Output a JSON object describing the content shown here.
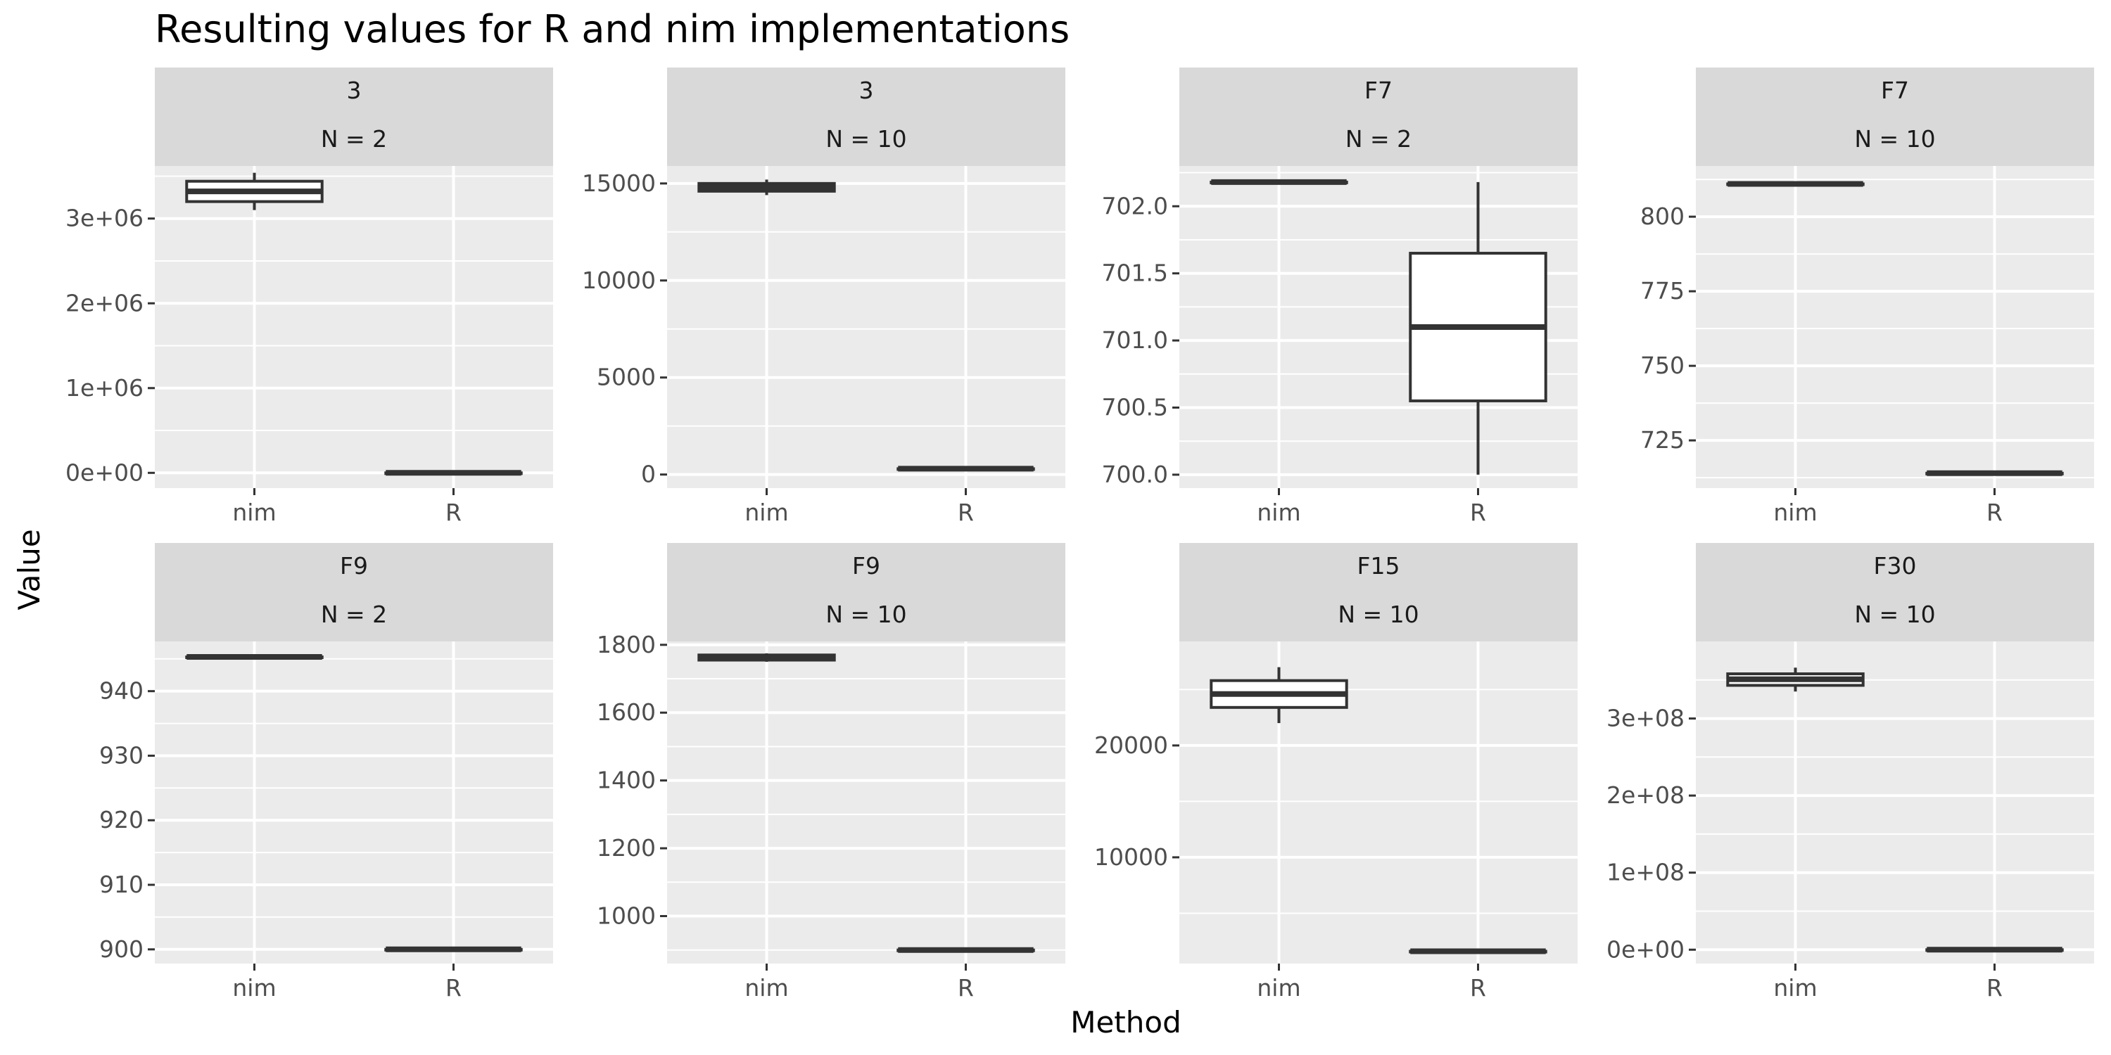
{
  "chart_data": {
    "type": "boxplot",
    "title": "Resulting values for R and nim implementations",
    "xlabel": "Method",
    "ylabel": "Value",
    "categories": [
      "nim",
      "R"
    ],
    "grid": true,
    "legend": "none",
    "panels": [
      {
        "strip": [
          "3",
          "N = 2"
        ],
        "ylim": [
          -180000,
          3620000
        ],
        "yticks": [
          0,
          1000000,
          2000000,
          3000000
        ],
        "yticklabels": [
          "0e+00",
          "1e+06",
          "2e+06",
          "3e+06"
        ],
        "boxes": [
          {
            "method": "nim",
            "min": 3100000,
            "q1": 3200000,
            "median": 3320000,
            "q3": 3440000,
            "max": 3540000
          },
          {
            "method": "R",
            "min": 0,
            "q1": 0,
            "median": 0,
            "q3": 0,
            "max": 0
          }
        ]
      },
      {
        "strip": [
          "3",
          "N = 10"
        ],
        "ylim": [
          -700,
          15900
        ],
        "yticks": [
          0,
          5000,
          10000,
          15000
        ],
        "yticklabels": [
          "0",
          "5000",
          "10000",
          "15000"
        ],
        "boxes": [
          {
            "method": "nim",
            "min": 14400,
            "q1": 14600,
            "median": 14800,
            "q3": 15000,
            "max": 15200
          },
          {
            "method": "R",
            "min": 300,
            "q1": 300,
            "median": 300,
            "q3": 300,
            "max": 300
          }
        ]
      },
      {
        "strip": [
          "F7",
          "N = 2"
        ],
        "ylim": [
          699.9,
          702.3
        ],
        "yticks": [
          700.0,
          700.5,
          701.0,
          701.5,
          702.0
        ],
        "yticklabels": [
          "700.0",
          "700.5",
          "701.0",
          "701.5",
          "702.0"
        ],
        "boxes": [
          {
            "method": "nim",
            "min": 702.18,
            "q1": 702.18,
            "median": 702.18,
            "q3": 702.18,
            "max": 702.18
          },
          {
            "method": "R",
            "min": 700.0,
            "q1": 700.55,
            "median": 701.1,
            "q3": 701.65,
            "max": 702.18
          }
        ]
      },
      {
        "strip": [
          "F7",
          "N = 10"
        ],
        "ylim": [
          709,
          817
        ],
        "yticks": [
          725,
          750,
          775,
          800
        ],
        "yticklabels": [
          "725",
          "750",
          "775",
          "800"
        ],
        "boxes": [
          {
            "method": "nim",
            "min": 811,
            "q1": 811,
            "median": 811,
            "q3": 811,
            "max": 811
          },
          {
            "method": "R",
            "min": 714,
            "q1": 714,
            "median": 714,
            "q3": 714,
            "max": 714
          }
        ]
      },
      {
        "strip": [
          "F9",
          "N = 2"
        ],
        "ylim": [
          897.8,
          947.7
        ],
        "yticks": [
          900,
          910,
          920,
          930,
          940
        ],
        "yticklabels": [
          "900",
          "910",
          "920",
          "930",
          "940"
        ],
        "boxes": [
          {
            "method": "nim",
            "min": 945.3,
            "q1": 945.3,
            "median": 945.3,
            "q3": 945.3,
            "max": 945.3
          },
          {
            "method": "R",
            "min": 900,
            "q1": 900,
            "median": 900,
            "q3": 900,
            "max": 900
          }
        ]
      },
      {
        "strip": [
          "F9",
          "N = 10"
        ],
        "ylim": [
          860,
          1810
        ],
        "yticks": [
          1000,
          1200,
          1400,
          1600,
          1800
        ],
        "yticklabels": [
          "1000",
          "1200",
          "1400",
          "1600",
          "1800"
        ],
        "boxes": [
          {
            "method": "nim",
            "min": 1750,
            "q1": 1755,
            "median": 1762,
            "q3": 1770,
            "max": 1775
          },
          {
            "method": "R",
            "min": 900,
            "q1": 900,
            "median": 900,
            "q3": 900,
            "max": 900
          }
        ]
      },
      {
        "strip": [
          "F15",
          "N = 10"
        ],
        "ylim": [
          500,
          29300
        ],
        "yticks": [
          10000,
          20000
        ],
        "yticklabels": [
          "10000",
          "20000"
        ],
        "boxes": [
          {
            "method": "nim",
            "min": 22000,
            "q1": 23400,
            "median": 24600,
            "q3": 25800,
            "max": 27000
          },
          {
            "method": "R",
            "min": 1600,
            "q1": 1600,
            "median": 1600,
            "q3": 1600,
            "max": 1600
          }
        ]
      },
      {
        "strip": [
          "F30",
          "N = 10"
        ],
        "ylim": [
          -18000000,
          400000000
        ],
        "yticks": [
          0,
          100000000,
          200000000,
          300000000
        ],
        "yticklabels": [
          "0e+00",
          "1e+08",
          "2e+08",
          "3e+08"
        ],
        "boxes": [
          {
            "method": "nim",
            "min": 335000000,
            "q1": 343000000,
            "median": 351000000,
            "q3": 358000000,
            "max": 366000000
          },
          {
            "method": "R",
            "min": 0,
            "q1": 0,
            "median": 0,
            "q3": 0,
            "max": 0
          }
        ]
      }
    ]
  }
}
